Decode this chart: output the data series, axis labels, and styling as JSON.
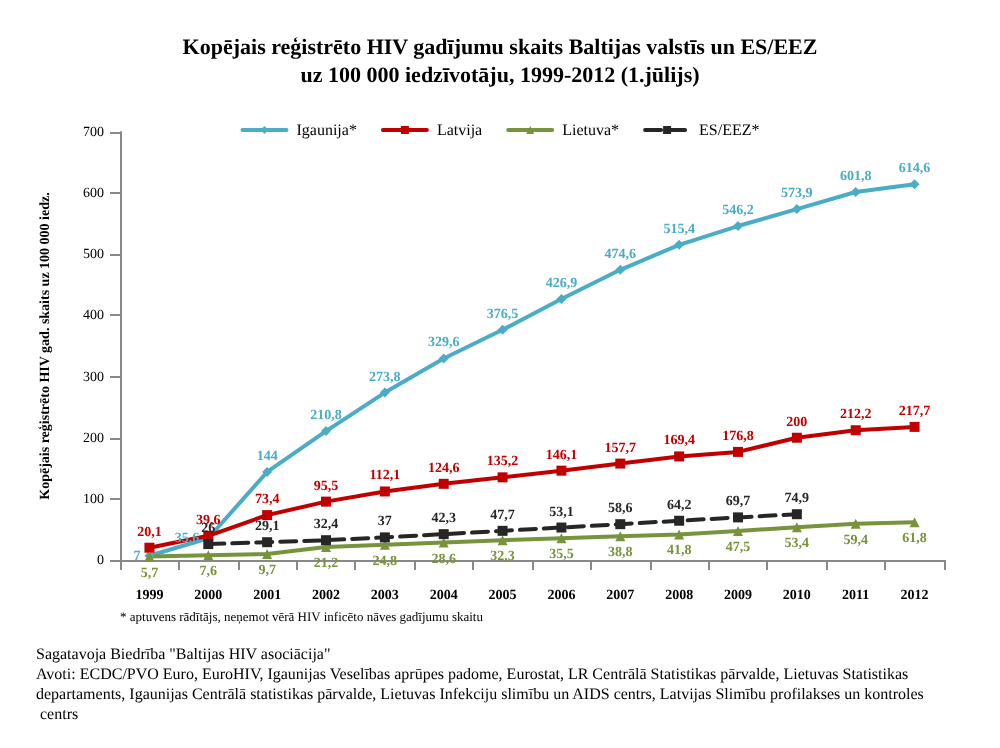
{
  "chart_data": {
    "type": "line",
    "title": "Kopējais reģistrēto HIV gadījumu skaits Baltijas valstīs un ES/EEZ\nuz 100 000 iedzīvotāju, 1999-2012 (1.jūlijs)",
    "ylabel": "Kopējais reģistrēto HIV gad. skaits uz 100 000 iedz.",
    "categories": [
      "1999",
      "2000",
      "2001",
      "2002",
      "2003",
      "2004",
      "2005",
      "2006",
      "2007",
      "2008",
      "2009",
      "2010",
      "2011",
      "2012"
    ],
    "series": [
      {
        "name": "Igaunija*",
        "color": "#4bacc6",
        "marker": "diamond",
        "line_style": "solid",
        "values": [
          7,
          35.6,
          144,
          210.8,
          273.8,
          329.6,
          376.5,
          426.9,
          474.6,
          515.4,
          546.2,
          573.9,
          601.8,
          614.6
        ],
        "value_labels": [
          "7",
          "35,6",
          "144",
          "210,8",
          "273,8",
          "329,6",
          "376,5",
          "426,9",
          "474,6",
          "515,4",
          "546,2",
          "573,9",
          "601,8",
          "614,6"
        ]
      },
      {
        "name": "Latvija",
        "color": "#c00000",
        "marker": "square",
        "line_style": "solid",
        "values": [
          20.1,
          39.6,
          73.4,
          95.5,
          112.1,
          124.6,
          135.2,
          146.1,
          157.7,
          169.4,
          176.8,
          200,
          212.2,
          217.7
        ],
        "value_labels": [
          "20,1",
          "39,6",
          "73,4",
          "95,5",
          "112,1",
          "124,6",
          "135,2",
          "146,1",
          "157,7",
          "169,4",
          "176,8",
          "200",
          "212,2",
          "217,7"
        ]
      },
      {
        "name": "Lietuva*",
        "color": "#77933c",
        "marker": "triangle",
        "line_style": "solid",
        "values": [
          5.7,
          7.6,
          9.7,
          21.2,
          24.8,
          28.6,
          32.3,
          35.5,
          38.8,
          41.8,
          47.5,
          53.4,
          59.4,
          61.8
        ],
        "value_labels": [
          "5,7",
          "7,6",
          "9,7",
          "21,2",
          "24,8",
          "28,6",
          "32,3",
          "35,5",
          "38,8",
          "41,8",
          "47,5",
          "53,4",
          "59,4",
          "61,8"
        ]
      },
      {
        "name": "ES/EEZ*",
        "color": "#262626",
        "marker": "square",
        "line_style": "dashed",
        "values": [
          null,
          26,
          29.1,
          32.4,
          37,
          42.3,
          47.7,
          53.1,
          58.6,
          64.2,
          69.7,
          74.9,
          null,
          null
        ],
        "value_labels": [
          null,
          "26",
          "29,1",
          "32,4",
          "37",
          "42,3",
          "47,7",
          "53,1",
          "58,6",
          "64,2",
          "69,7",
          "74,9",
          null,
          null
        ]
      }
    ],
    "ylim": [
      0,
      700
    ],
    "yticks": [
      0,
      100,
      200,
      300,
      400,
      500,
      600,
      700
    ],
    "grid": false,
    "legend": "top",
    "annotations": [
      "* aptuvens rādītājs, neņemot vērā HIV inficēto nāves gadījumu skaitu",
      "Sagatavoja Biedrība \"Baltijas HIV asociācija\"",
      "Avoti: ECDC/PVO Euro, EuroHIV, Igaunijas Veselības aprūpes padome, Eurostat, LR Centrālā Statistikas pārvalde, Lietuvas Statistikas departaments, Igaunijas Centrālā statistikas pārvalde, Lietuvas Infekciju slimību un AIDS centrs, Latvijas Slimību profilakses un kontroles centrs"
    ]
  }
}
